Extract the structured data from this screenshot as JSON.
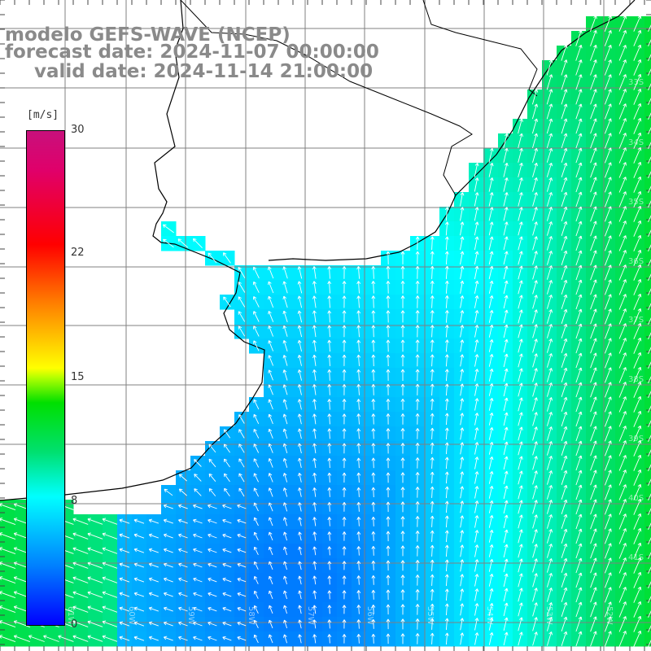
{
  "title": {
    "line1": "modelo GEFS-WAVE (NCEP)",
    "line2": "forecast date: 2024-11-07 00:00:00",
    "line3": "valid date: 2024-11-14 21:00:00"
  },
  "colorbar": {
    "unit": "[m/s]",
    "ticks": [
      "30",
      "22",
      "15",
      "8",
      "0"
    ],
    "tick_values": [
      30,
      22,
      15,
      8,
      0
    ],
    "range": [
      0,
      30
    ],
    "colors": [
      "#0000ff",
      "#0080ff",
      "#00ffff",
      "#00e070",
      "#00e000",
      "#ffff00",
      "#ff8000",
      "#ff0000",
      "#c8107c"
    ]
  },
  "map": {
    "grid_color": "#808080",
    "coast_color": "#000000",
    "field": "wind speed with direction arrows",
    "lon_labels": [
      "61W",
      "60W",
      "59W",
      "58W",
      "57W",
      "56W",
      "55W",
      "54W",
      "53W",
      "52W"
    ],
    "lat_labels": [
      "33S",
      "34S",
      "35S",
      "36S",
      "37S",
      "38S",
      "39S",
      "40S",
      "41S"
    ]
  }
}
